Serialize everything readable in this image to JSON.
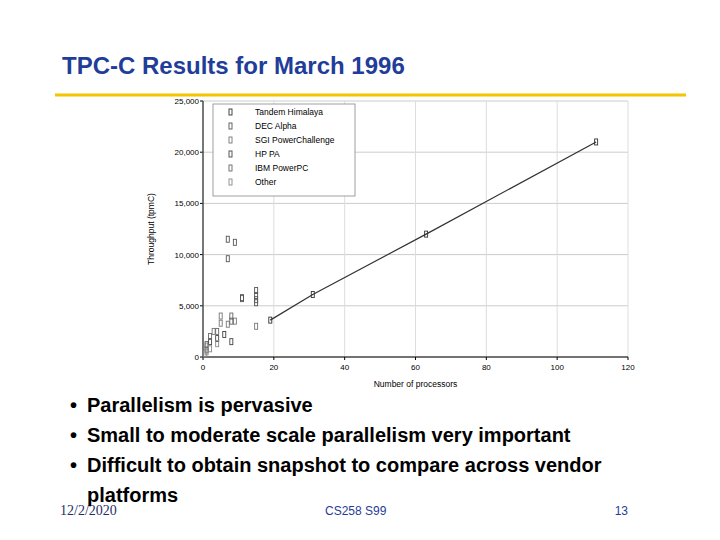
{
  "slide": {
    "title": "TPC-C Results for March 1996",
    "bullets": [
      "Parallelism is pervasive",
      "Small to moderate scale parallelism very important",
      "Difficult to obtain snapshot to compare across vendor platforms"
    ],
    "footer": {
      "date": "12/2/2020",
      "course": "CS258 S99",
      "page": "13"
    }
  },
  "chart_data": {
    "type": "scatter",
    "x_label": "Number of processors",
    "y_label": "Throughput (tpmC)",
    "xlim": [
      0,
      120
    ],
    "xticks": [
      0,
      20,
      40,
      60,
      80,
      100,
      120
    ],
    "ylim": [
      0,
      25000
    ],
    "yticks": [
      0,
      {
        "value": 5000,
        "label": "5,000"
      },
      {
        "value": 10000,
        "label": "10,000"
      },
      {
        "value": 15000,
        "label": "15,000"
      },
      {
        "value": 20000,
        "label": "20,000"
      },
      {
        "value": 25000,
        "label": "25,000"
      }
    ],
    "grid": true,
    "legend": "top-left",
    "series": [
      {
        "name": "Tandem Himalaya",
        "color": "#333333",
        "marker": "square",
        "line_style": "solid",
        "x": [
          19,
          31,
          63,
          111
        ],
        "values": [
          3600,
          6100,
          12000,
          21000
        ]
      },
      {
        "name": "DEC Alpha",
        "color": "#555555",
        "marker": "square",
        "x": [
          7,
          9,
          7,
          15,
          15,
          15,
          15,
          11,
          11
        ],
        "values": [
          11500,
          11200,
          9600,
          6500,
          6000,
          5600,
          5300,
          5800,
          5700
        ]
      },
      {
        "name": "SGI PowerChallenge",
        "color": "#777777",
        "marker": "square",
        "x": [
          3,
          5,
          5,
          7,
          9,
          15
        ],
        "values": [
          2500,
          3300,
          4000,
          3200,
          3500,
          3000
        ]
      },
      {
        "name": "HP PA",
        "color": "#444444",
        "marker": "square",
        "x": [
          1,
          2,
          4,
          6,
          8
        ],
        "values": [
          1200,
          1500,
          1800,
          2200,
          1500
        ]
      },
      {
        "name": "IBM PowerPC",
        "color": "#666666",
        "marker": "square",
        "x": [
          1,
          2,
          4,
          8,
          8
        ],
        "values": [
          700,
          2000,
          2500,
          4000,
          3500
        ]
      },
      {
        "name": "Other",
        "color": "#888888",
        "marker": "square",
        "x": [
          1,
          1,
          2,
          4,
          0.5
        ],
        "values": [
          500,
          1000,
          800,
          1300,
          300
        ]
      }
    ]
  }
}
